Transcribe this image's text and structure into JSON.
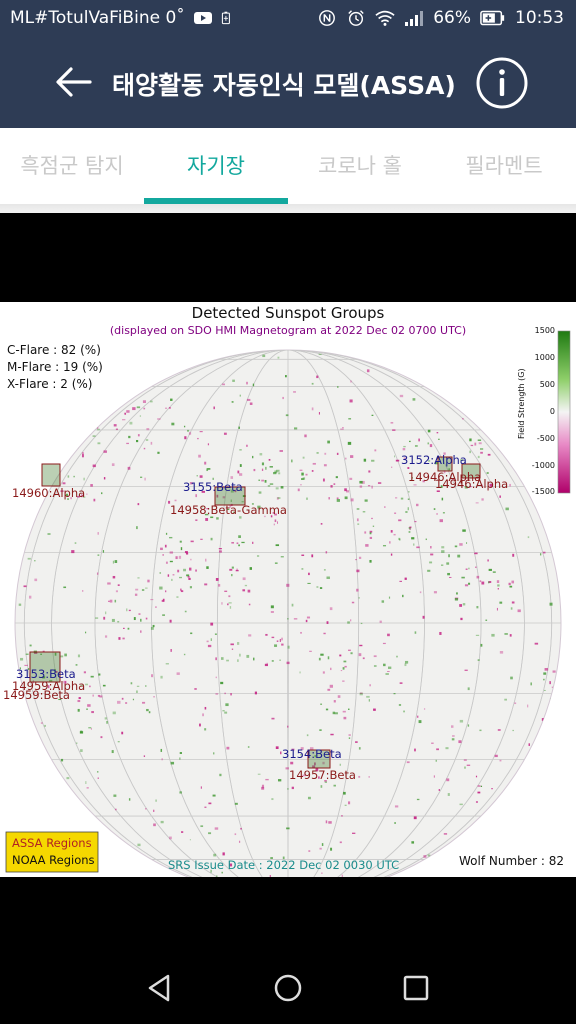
{
  "status_bar": {
    "notification_text": "ML#TotulVaFiBine 0˚",
    "battery_percent": "66%",
    "time": "10:53"
  },
  "app_bar": {
    "title": "태양활동 자동인식 모델(ASSA)"
  },
  "tabs": [
    {
      "label": "흑점군 탐지",
      "selected": false
    },
    {
      "label": "자기장",
      "selected": true
    },
    {
      "label": "코로나 홀",
      "selected": false
    },
    {
      "label": "필라멘트",
      "selected": false
    }
  ],
  "magnetogram": {
    "title": "Detected Sunspot Groups",
    "subtitle": "(displayed on SDO HMI Magnetogram at 2022 Dec 02 0700 UTC)",
    "flare_probabilities": [
      "C-Flare : 82 (%)",
      "M-Flare : 19 (%)",
      "X-Flare :  2 (%)"
    ],
    "colorbar": {
      "label": "Field Strength (G)",
      "ticks": [
        "1500",
        "1000",
        "500",
        "0",
        "-500",
        "-1000",
        "-1500"
      ],
      "positive_color": "#2f8f1f",
      "negative_color": "#c0107a"
    },
    "region_labels": [
      {
        "text": "3152:Alpha",
        "type": "assa"
      },
      {
        "text": "14946:Alpha",
        "type": "noaa"
      },
      {
        "text": "14946:Alpha",
        "type": "noaa"
      },
      {
        "text": "14960:Alpha",
        "type": "noaa"
      },
      {
        "text": "3155:Beta",
        "type": "assa"
      },
      {
        "text": "14958:Beta-Gamma",
        "type": "noaa"
      },
      {
        "text": "3153:Beta",
        "type": "assa"
      },
      {
        "text": "14959:Alpha",
        "type": "noaa"
      },
      {
        "text": "14959:Beta",
        "type": "noaa"
      },
      {
        "text": "3154:Beta",
        "type": "assa"
      },
      {
        "text": "14957:Beta",
        "type": "noaa"
      }
    ],
    "legend": [
      "ASSA Regions",
      "NOAA Regions"
    ],
    "issue_date": "SRS Issue Date : 2022 Dec 02 0030 UTC",
    "wolf_number": "Wolf Number : 82",
    "colors": {
      "assa": "#1a1a8c",
      "noaa": "#8b1a1a",
      "legend_bg": "#f5d800",
      "footer": "#1a8c8c"
    }
  }
}
